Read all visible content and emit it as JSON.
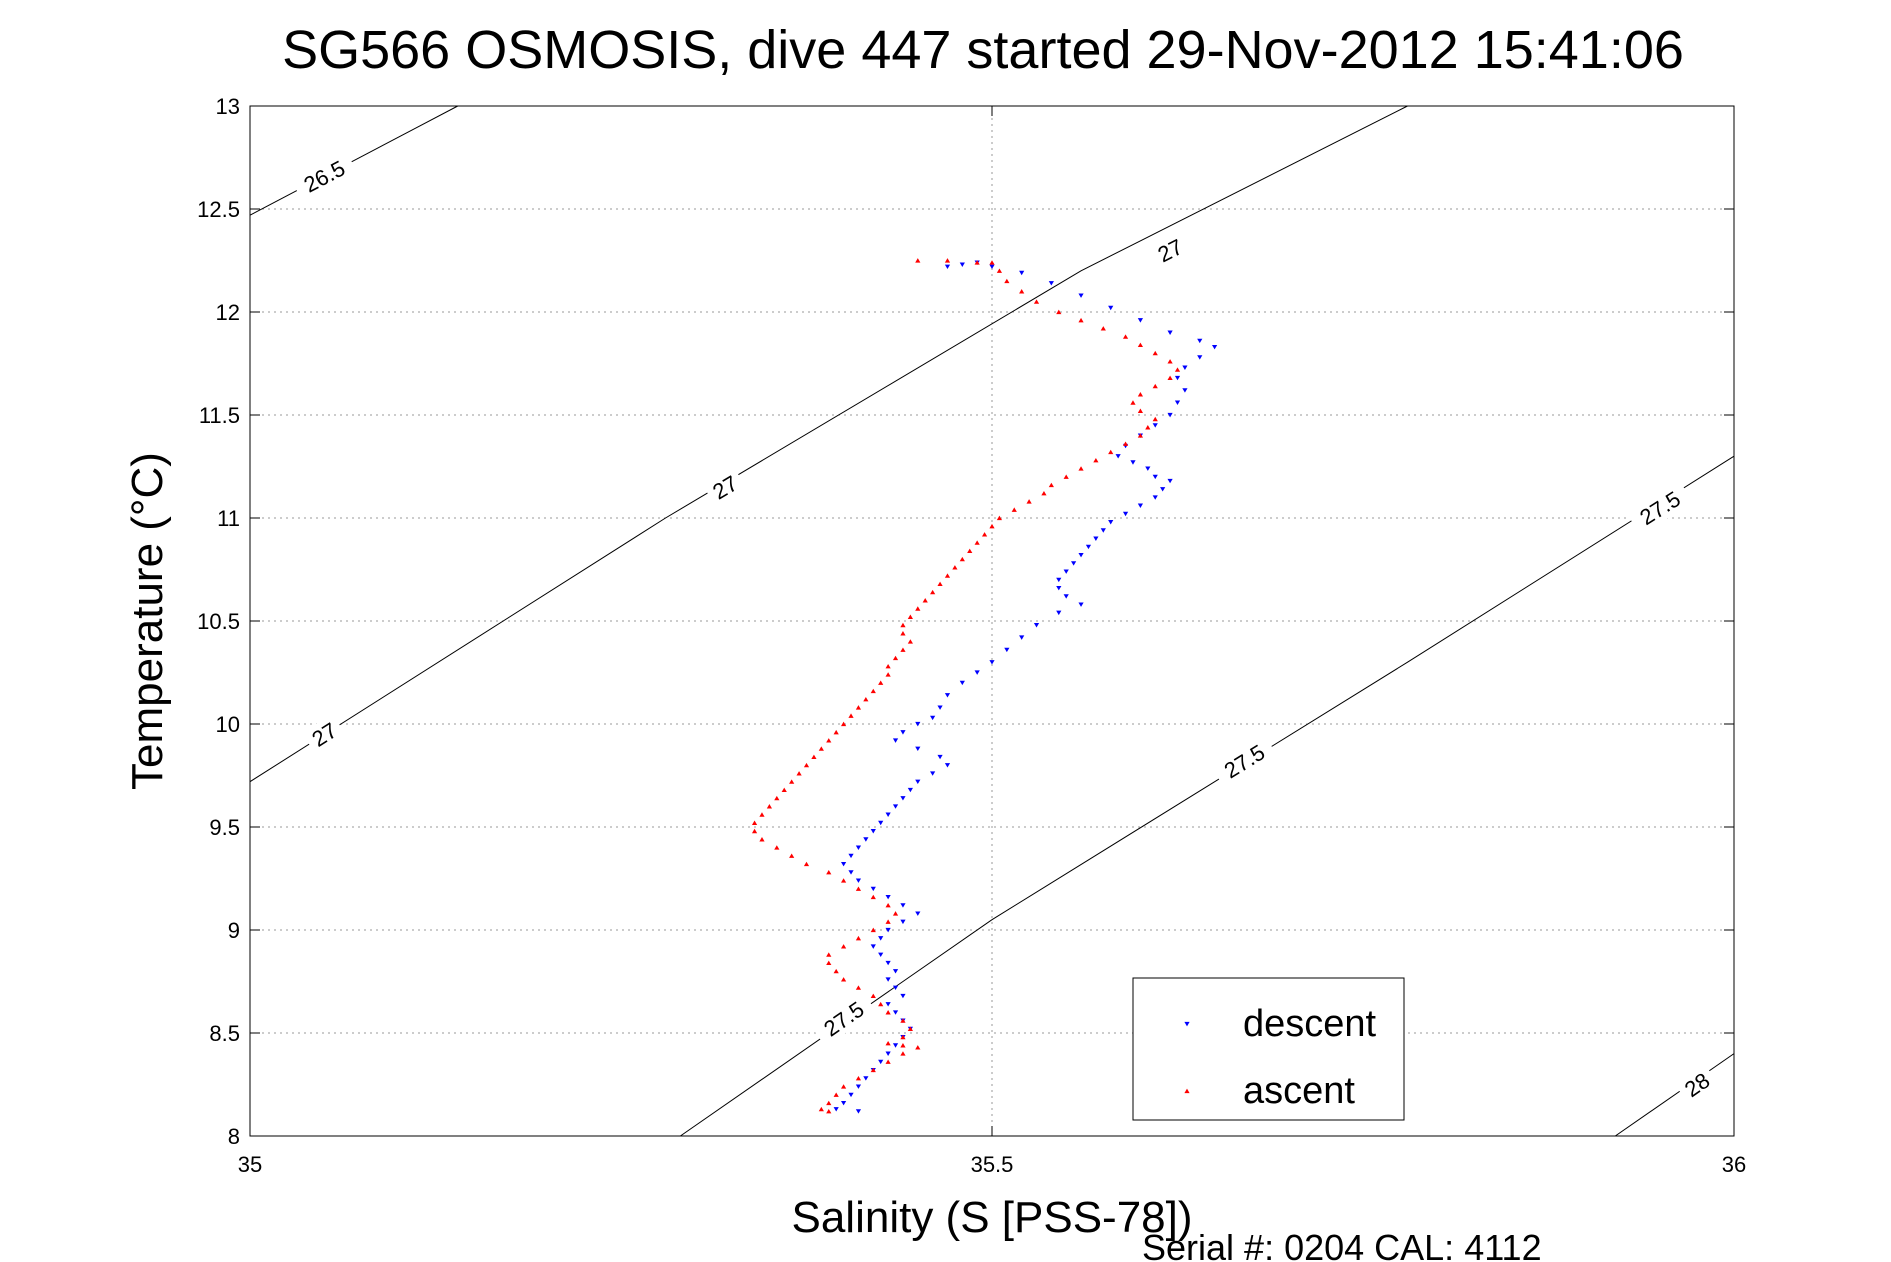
{
  "chart_data": {
    "type": "scatter",
    "title": "SG566 OSMOSIS, dive 447 started 29-Nov-2012 15:41:06",
    "xlabel": "Salinity (S [PSS-78])",
    "ylabel": "Temperature (°C)",
    "xlim": [
      35,
      36
    ],
    "ylim": [
      8,
      13
    ],
    "xticks": [
      35,
      35.5,
      36
    ],
    "xtick_labels": [
      "35",
      "35.5",
      "36"
    ],
    "yticks": [
      8,
      8.5,
      9,
      9.5,
      10,
      10.5,
      11,
      11.5,
      12,
      12.5,
      13
    ],
    "ytick_labels": [
      "8",
      "8.5",
      "9",
      "9.5",
      "10",
      "10.5",
      "11",
      "11.5",
      "12",
      "12.5",
      "13"
    ],
    "grid": true,
    "legend_position": "bottom-right",
    "footer": "Serial #: 0204  CAL: 4112",
    "contours": [
      {
        "label": "26.5",
        "points": [
          [
            35.0,
            12.47
          ],
          [
            35.14,
            13.0
          ]
        ],
        "label_positions": [
          [
            35.05,
            12.66
          ]
        ]
      },
      {
        "label": "27",
        "points": [
          [
            35.0,
            9.72
          ],
          [
            35.28,
            11.0
          ],
          [
            35.56,
            12.2
          ],
          [
            35.78,
            13.0
          ]
        ],
        "label_positions": [
          [
            35.05,
            9.95
          ],
          [
            35.32,
            11.15
          ],
          [
            35.62,
            12.3
          ]
        ]
      },
      {
        "label": "27.5",
        "points": [
          [
            35.29,
            8.0
          ],
          [
            35.5,
            9.05
          ],
          [
            35.78,
            10.3
          ],
          [
            36.0,
            11.3
          ]
        ],
        "label_positions": [
          [
            35.4,
            8.57
          ],
          [
            35.67,
            9.82
          ],
          [
            35.95,
            11.05
          ]
        ]
      },
      {
        "label": "28",
        "points": [
          [
            35.92,
            8.0
          ],
          [
            36.0,
            8.4
          ]
        ],
        "label_positions": [
          [
            35.975,
            8.25
          ]
        ]
      }
    ],
    "series": [
      {
        "name": "descent",
        "color": "#0000ff",
        "marker": "triangle-down",
        "points": [
          [
            35.47,
            12.22
          ],
          [
            35.48,
            12.23
          ],
          [
            35.49,
            12.24
          ],
          [
            35.5,
            12.22
          ],
          [
            35.52,
            12.19
          ],
          [
            35.54,
            12.14
          ],
          [
            35.56,
            12.08
          ],
          [
            35.58,
            12.02
          ],
          [
            35.6,
            11.96
          ],
          [
            35.62,
            11.9
          ],
          [
            35.64,
            11.86
          ],
          [
            35.65,
            11.83
          ],
          [
            35.64,
            11.78
          ],
          [
            35.63,
            11.73
          ],
          [
            35.625,
            11.68
          ],
          [
            35.63,
            11.62
          ],
          [
            35.625,
            11.56
          ],
          [
            35.62,
            11.5
          ],
          [
            35.61,
            11.45
          ],
          [
            35.6,
            11.4
          ],
          [
            35.59,
            11.35
          ],
          [
            35.585,
            11.3
          ],
          [
            35.595,
            11.27
          ],
          [
            35.605,
            11.24
          ],
          [
            35.61,
            11.2
          ],
          [
            35.62,
            11.18
          ],
          [
            35.615,
            11.14
          ],
          [
            35.61,
            11.1
          ],
          [
            35.6,
            11.06
          ],
          [
            35.59,
            11.02
          ],
          [
            35.58,
            10.98
          ],
          [
            35.575,
            10.94
          ],
          [
            35.57,
            10.9
          ],
          [
            35.565,
            10.86
          ],
          [
            35.56,
            10.82
          ],
          [
            35.555,
            10.78
          ],
          [
            35.55,
            10.74
          ],
          [
            35.545,
            10.7
          ],
          [
            35.545,
            10.66
          ],
          [
            35.55,
            10.62
          ],
          [
            35.56,
            10.58
          ],
          [
            35.545,
            10.54
          ],
          [
            35.53,
            10.48
          ],
          [
            35.52,
            10.42
          ],
          [
            35.51,
            10.36
          ],
          [
            35.5,
            10.3
          ],
          [
            35.49,
            10.25
          ],
          [
            35.48,
            10.2
          ],
          [
            35.47,
            10.14
          ],
          [
            35.465,
            10.08
          ],
          [
            35.46,
            10.03
          ],
          [
            35.45,
            10.0
          ],
          [
            35.44,
            9.96
          ],
          [
            35.435,
            9.92
          ],
          [
            35.45,
            9.88
          ],
          [
            35.465,
            9.84
          ],
          [
            35.47,
            9.8
          ],
          [
            35.46,
            9.76
          ],
          [
            35.45,
            9.72
          ],
          [
            35.445,
            9.68
          ],
          [
            35.44,
            9.64
          ],
          [
            35.435,
            9.6
          ],
          [
            35.43,
            9.56
          ],
          [
            35.425,
            9.52
          ],
          [
            35.42,
            9.48
          ],
          [
            35.415,
            9.44
          ],
          [
            35.41,
            9.4
          ],
          [
            35.405,
            9.36
          ],
          [
            35.4,
            9.32
          ],
          [
            35.405,
            9.28
          ],
          [
            35.41,
            9.24
          ],
          [
            35.42,
            9.2
          ],
          [
            35.43,
            9.16
          ],
          [
            35.44,
            9.12
          ],
          [
            35.45,
            9.08
          ],
          [
            35.44,
            9.04
          ],
          [
            35.43,
            9.0
          ],
          [
            35.425,
            8.96
          ],
          [
            35.42,
            8.92
          ],
          [
            35.425,
            8.88
          ],
          [
            35.43,
            8.84
          ],
          [
            35.435,
            8.8
          ],
          [
            35.43,
            8.76
          ],
          [
            35.435,
            8.72
          ],
          [
            35.44,
            8.68
          ],
          [
            35.43,
            8.64
          ],
          [
            35.435,
            8.6
          ],
          [
            35.44,
            8.56
          ],
          [
            35.445,
            8.52
          ],
          [
            35.44,
            8.48
          ],
          [
            35.435,
            8.44
          ],
          [
            35.43,
            8.4
          ],
          [
            35.425,
            8.36
          ],
          [
            35.42,
            8.32
          ],
          [
            35.415,
            8.28
          ],
          [
            35.41,
            8.24
          ],
          [
            35.405,
            8.2
          ],
          [
            35.4,
            8.16
          ],
          [
            35.395,
            8.13
          ],
          [
            35.41,
            8.12
          ]
        ]
      },
      {
        "name": "ascent",
        "color": "#ff0000",
        "marker": "triangle-up",
        "points": [
          [
            35.45,
            12.25
          ],
          [
            35.47,
            12.25
          ],
          [
            35.49,
            12.24
          ],
          [
            35.5,
            12.24
          ],
          [
            35.505,
            12.2
          ],
          [
            35.51,
            12.15
          ],
          [
            35.52,
            12.1
          ],
          [
            35.53,
            12.05
          ],
          [
            35.545,
            12.0
          ],
          [
            35.56,
            11.96
          ],
          [
            35.575,
            11.92
          ],
          [
            35.59,
            11.88
          ],
          [
            35.6,
            11.84
          ],
          [
            35.61,
            11.8
          ],
          [
            35.62,
            11.76
          ],
          [
            35.625,
            11.72
          ],
          [
            35.62,
            11.68
          ],
          [
            35.61,
            11.64
          ],
          [
            35.6,
            11.6
          ],
          [
            35.595,
            11.56
          ],
          [
            35.6,
            11.52
          ],
          [
            35.61,
            11.48
          ],
          [
            35.605,
            11.44
          ],
          [
            35.6,
            11.4
          ],
          [
            35.59,
            11.36
          ],
          [
            35.58,
            11.32
          ],
          [
            35.57,
            11.28
          ],
          [
            35.56,
            11.24
          ],
          [
            35.55,
            11.2
          ],
          [
            35.54,
            11.16
          ],
          [
            35.535,
            11.12
          ],
          [
            35.525,
            11.08
          ],
          [
            35.515,
            11.04
          ],
          [
            35.505,
            11.0
          ],
          [
            35.5,
            10.96
          ],
          [
            35.495,
            10.92
          ],
          [
            35.49,
            10.88
          ],
          [
            35.485,
            10.84
          ],
          [
            35.48,
            10.8
          ],
          [
            35.475,
            10.76
          ],
          [
            35.47,
            10.72
          ],
          [
            35.465,
            10.68
          ],
          [
            35.46,
            10.64
          ],
          [
            35.455,
            10.6
          ],
          [
            35.45,
            10.56
          ],
          [
            35.445,
            10.52
          ],
          [
            35.44,
            10.48
          ],
          [
            35.44,
            10.44
          ],
          [
            35.445,
            10.4
          ],
          [
            35.44,
            10.36
          ],
          [
            35.435,
            10.32
          ],
          [
            35.43,
            10.28
          ],
          [
            35.43,
            10.24
          ],
          [
            35.425,
            10.2
          ],
          [
            35.42,
            10.16
          ],
          [
            35.415,
            10.12
          ],
          [
            35.41,
            10.08
          ],
          [
            35.405,
            10.04
          ],
          [
            35.4,
            10.0
          ],
          [
            35.395,
            9.96
          ],
          [
            35.39,
            9.92
          ],
          [
            35.385,
            9.88
          ],
          [
            35.38,
            9.84
          ],
          [
            35.375,
            9.8
          ],
          [
            35.37,
            9.76
          ],
          [
            35.365,
            9.72
          ],
          [
            35.36,
            9.68
          ],
          [
            35.355,
            9.64
          ],
          [
            35.35,
            9.6
          ],
          [
            35.345,
            9.56
          ],
          [
            35.34,
            9.52
          ],
          [
            35.34,
            9.48
          ],
          [
            35.345,
            9.44
          ],
          [
            35.355,
            9.4
          ],
          [
            35.365,
            9.36
          ],
          [
            35.375,
            9.32
          ],
          [
            35.39,
            9.28
          ],
          [
            35.4,
            9.24
          ],
          [
            35.41,
            9.2
          ],
          [
            35.42,
            9.16
          ],
          [
            35.43,
            9.12
          ],
          [
            35.435,
            9.08
          ],
          [
            35.43,
            9.04
          ],
          [
            35.42,
            9.0
          ],
          [
            35.41,
            8.96
          ],
          [
            35.4,
            8.92
          ],
          [
            35.39,
            8.88
          ],
          [
            35.39,
            8.84
          ],
          [
            35.395,
            8.8
          ],
          [
            35.4,
            8.76
          ],
          [
            35.41,
            8.72
          ],
          [
            35.42,
            8.68
          ],
          [
            35.425,
            8.64
          ],
          [
            35.43,
            8.6
          ],
          [
            35.44,
            8.56
          ],
          [
            35.445,
            8.52
          ],
          [
            35.44,
            8.48
          ],
          [
            35.43,
            8.45
          ],
          [
            35.44,
            8.44
          ],
          [
            35.45,
            8.43
          ],
          [
            35.44,
            8.4
          ],
          [
            35.43,
            8.36
          ],
          [
            35.42,
            8.32
          ],
          [
            35.41,
            8.28
          ],
          [
            35.4,
            8.24
          ],
          [
            35.395,
            8.2
          ],
          [
            35.39,
            8.16
          ],
          [
            35.385,
            8.13
          ],
          [
            35.39,
            8.12
          ]
        ]
      }
    ]
  }
}
